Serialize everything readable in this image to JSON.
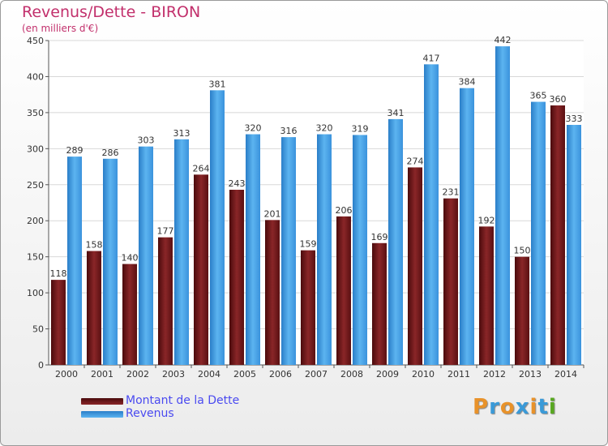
{
  "header": {
    "title": "Revenus/Dette - BIRON",
    "subtitle": "(en milliers d'€)"
  },
  "legend": {
    "items": [
      {
        "label": "Montant de la Dette",
        "color": "#7a1a1c"
      },
      {
        "label": "Revenus",
        "color": "#3f9ee8"
      }
    ]
  },
  "logo": {
    "text": "Proxiti",
    "letters": [
      "P",
      "r",
      "o",
      "x",
      "i",
      "t",
      "i"
    ],
    "colors": [
      "#e8922a",
      "#3a9ad8",
      "#e8922a",
      "#3a9ad8",
      "#e8922a",
      "#3a9ad8",
      "#58a820"
    ]
  },
  "chart_data": {
    "type": "bar",
    "categories": [
      "2000",
      "2001",
      "2002",
      "2003",
      "2004",
      "2005",
      "2006",
      "2007",
      "2008",
      "2009",
      "2010",
      "2011",
      "2012",
      "2013",
      "2014"
    ],
    "series": [
      {
        "name": "Montant de la Dette",
        "color": "#7a1a1c",
        "values": [
          118,
          158,
          140,
          177,
          264,
          243,
          201,
          159,
          206,
          169,
          274,
          231,
          192,
          150,
          360
        ]
      },
      {
        "name": "Revenus",
        "color": "#3f9ee8",
        "values": [
          289,
          286,
          303,
          313,
          381,
          320,
          316,
          320,
          319,
          341,
          417,
          384,
          442,
          365,
          333
        ]
      }
    ],
    "ylim": [
      0,
      450
    ],
    "yticks": [
      0,
      50,
      100,
      150,
      200,
      250,
      300,
      350,
      400,
      450
    ],
    "grid": true,
    "legend_position": "bottom-left"
  }
}
